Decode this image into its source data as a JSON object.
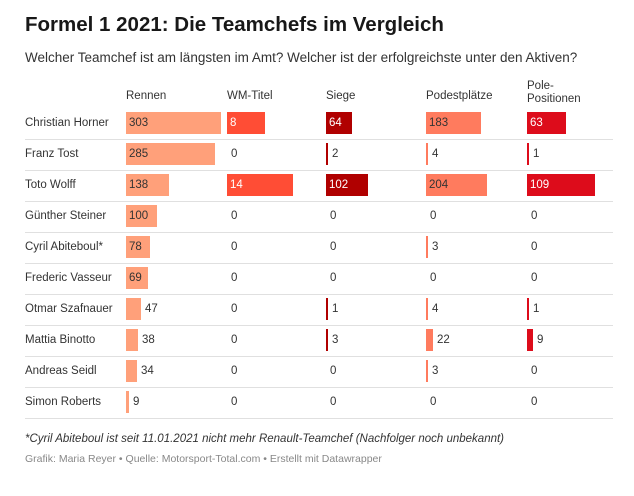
{
  "title": "Formel 1 2021: Die Teamchefs im Vergleich",
  "subtitle": "Welcher Teamchef ist am längsten im Amt? Welcher ist der erfolgreichste unter den Aktiven?",
  "footnote": "*Cyril Abiteboul ist seit 11.01.2021 nicht mehr Renault-Teamchef (Nachfolger noch unbekannt)",
  "source": "Grafik: Maria Reyer • Quelle: Motorsport-Total.com • Erstellt mit Datawrapper",
  "chart_data": {
    "type": "table",
    "columns": [
      {
        "key": "rennen",
        "label": "Rennen",
        "max": 303,
        "color": "#ffa07a"
      },
      {
        "key": "wm_titel",
        "label": "WM-Titel",
        "max": 14,
        "color": "#ff4d35"
      },
      {
        "key": "siege",
        "label": "Siege",
        "max": 102,
        "color": "#b00000"
      },
      {
        "key": "podestplaetze",
        "label": "Podestplätze",
        "max": 204,
        "color": "#ff7b5e"
      },
      {
        "key": "pole_positionen",
        "label": "Pole-Positionen",
        "max": 109,
        "color": "#dd0c1b"
      }
    ],
    "rows": [
      {
        "name": "Christian Horner",
        "values": [
          303,
          8,
          64,
          183,
          63
        ]
      },
      {
        "name": "Franz Tost",
        "values": [
          285,
          0,
          2,
          4,
          1
        ]
      },
      {
        "name": "Toto Wolff",
        "values": [
          138,
          14,
          102,
          204,
          109
        ]
      },
      {
        "name": "Günther Steiner",
        "values": [
          100,
          0,
          0,
          0,
          0
        ]
      },
      {
        "name": "Cyril Abiteboul*",
        "values": [
          78,
          0,
          0,
          3,
          0
        ]
      },
      {
        "name": "Frederic Vasseur",
        "values": [
          69,
          0,
          0,
          0,
          0
        ]
      },
      {
        "name": "Otmar Szafnauer",
        "values": [
          47,
          0,
          1,
          4,
          1
        ]
      },
      {
        "name": "Mattia Binotto",
        "values": [
          38,
          0,
          3,
          22,
          9
        ]
      },
      {
        "name": "Andreas Seidl",
        "values": [
          34,
          0,
          0,
          3,
          0
        ]
      },
      {
        "name": "Simon Roberts",
        "values": [
          9,
          0,
          0,
          0,
          0
        ]
      }
    ]
  }
}
